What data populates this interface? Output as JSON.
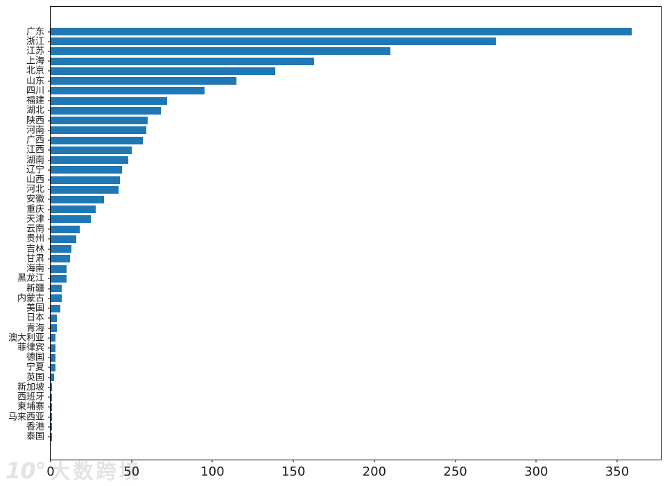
{
  "chart_data": {
    "type": "bar",
    "orientation": "horizontal",
    "title": "",
    "xlabel": "",
    "ylabel": "",
    "grid": false,
    "bar_color": "#1f77b4",
    "xlim": [
      0,
      377
    ],
    "x_ticks": [
      "0",
      "50",
      "100",
      "150",
      "200",
      "250",
      "300",
      "350"
    ],
    "x_tick_values": [
      0,
      50,
      100,
      150,
      200,
      250,
      300,
      350
    ],
    "categories": [
      "广东",
      "浙江",
      "江苏",
      "上海",
      "北京",
      "山东",
      "四川",
      "福建",
      "湖北",
      "陕西",
      "河南",
      "广西",
      "江西",
      "湖南",
      "辽宁",
      "山西",
      "河北",
      "安徽",
      "重庆",
      "天津",
      "云南",
      "贵州",
      "吉林",
      "甘肃",
      "海南",
      "黑龙江",
      "新疆",
      "内蒙古",
      "美国",
      "日本",
      "青海",
      "澳大利亚",
      "菲律宾",
      "德国",
      "宁夏",
      "英国",
      "新加坡",
      "西班牙",
      "柬埔寨",
      "马来西亚",
      "香港",
      "泰国"
    ],
    "values": [
      359,
      275,
      210,
      163,
      139,
      115,
      95,
      72,
      68,
      60,
      59,
      57,
      50,
      48,
      44,
      43,
      42,
      33,
      28,
      25,
      18,
      16,
      13,
      12,
      10,
      10,
      7,
      7,
      6,
      4,
      4,
      3,
      3,
      3,
      3,
      2,
      1,
      1,
      1,
      1,
      1,
      1
    ]
  },
  "watermark": {
    "logo": "10°",
    "text": "大数跨境",
    "color": "#e3e3e3"
  }
}
